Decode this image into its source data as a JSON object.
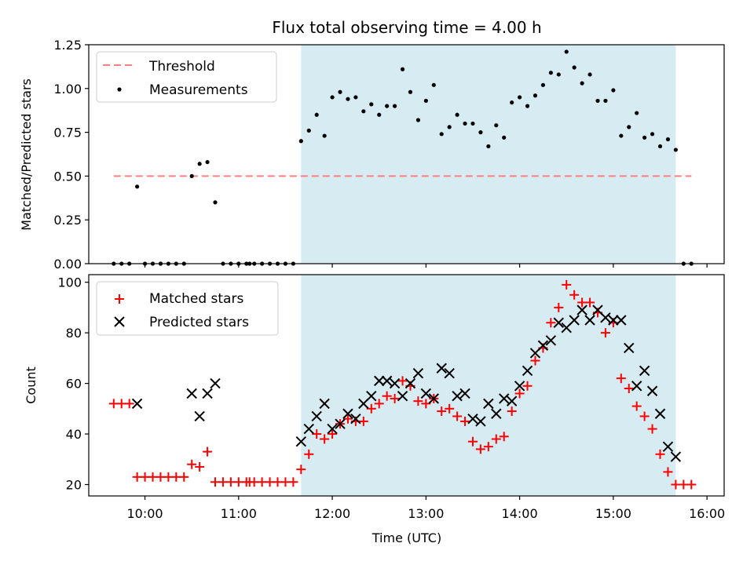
{
  "figure": {
    "title": "Flux total observing time = 4.00 h",
    "xlabel": "Time (UTC)"
  },
  "chart_data": [
    {
      "type": "scatter",
      "panel": "top",
      "ylabel": "Matched/Predicted stars",
      "xlim": [
        "09:24",
        "16:11"
      ],
      "ylim": [
        0,
        1.25
      ],
      "yticks": [
        "0.00",
        "0.25",
        "0.50",
        "0.75",
        "1.00",
        "1.25"
      ],
      "xticks": [
        "10:00",
        "11:00",
        "12:00",
        "13:00",
        "14:00",
        "15:00",
        "16:00"
      ],
      "shaded_span": [
        "11:40",
        "15:40"
      ],
      "shade_color": "#add8e6",
      "legend_position": "upper left",
      "threshold": {
        "name": "Threshold",
        "value": 0.5,
        "x_range": [
          "09:40",
          "15:50"
        ],
        "color": "#ff7f7f",
        "style": "dashed"
      },
      "series": [
        {
          "name": "Measurements",
          "color": "#000000",
          "marker": "dot",
          "x": [
            "09:40",
            "09:45",
            "09:50",
            "09:55",
            "10:00",
            "10:05",
            "10:10",
            "10:15",
            "10:20",
            "10:25",
            "10:30",
            "10:35",
            "10:40",
            "10:45",
            "10:50",
            "10:55",
            "11:00",
            "11:05",
            "11:07",
            "11:10",
            "11:15",
            "11:20",
            "11:25",
            "11:30",
            "11:35",
            "11:40",
            "11:45",
            "11:50",
            "11:55",
            "12:00",
            "12:05",
            "12:10",
            "12:15",
            "12:20",
            "12:25",
            "12:30",
            "12:35",
            "12:40",
            "12:45",
            "12:50",
            "12:55",
            "13:00",
            "13:05",
            "13:10",
            "13:15",
            "13:20",
            "13:25",
            "13:30",
            "13:35",
            "13:40",
            "13:45",
            "13:50",
            "13:55",
            "14:00",
            "14:05",
            "14:10",
            "14:15",
            "14:20",
            "14:25",
            "14:30",
            "14:35",
            "14:40",
            "14:45",
            "14:50",
            "14:55",
            "15:00",
            "15:05",
            "15:10",
            "15:15",
            "15:20",
            "15:25",
            "15:30",
            "15:35",
            "15:40",
            "15:45",
            "15:50"
          ],
          "y": [
            0,
            0,
            0,
            0.44,
            0,
            0,
            0,
            0,
            0,
            0,
            0.5,
            0.57,
            0.58,
            0.35,
            0,
            0,
            0,
            0,
            0,
            0,
            0,
            0,
            0,
            0,
            0,
            0.7,
            0.76,
            0.85,
            0.73,
            0.95,
            0.98,
            0.94,
            0.95,
            0.87,
            0.91,
            0.85,
            0.9,
            0.9,
            1.11,
            0.98,
            0.82,
            0.93,
            1.02,
            0.74,
            0.78,
            0.85,
            0.8,
            0.8,
            0.75,
            0.67,
            0.79,
            0.72,
            0.92,
            0.95,
            0.9,
            0.96,
            1.02,
            1.09,
            1.08,
            1.21,
            1.12,
            1.03,
            1.08,
            0.93,
            0.93,
            0.99,
            0.73,
            0.78,
            0.86,
            0.72,
            0.74,
            0.67,
            0.71,
            0.65,
            0,
            0
          ]
        }
      ]
    },
    {
      "type": "scatter",
      "panel": "bottom",
      "ylabel": "Count",
      "xlim": [
        "09:24",
        "16:11"
      ],
      "ylim": [
        15.5,
        103
      ],
      "yticks": [
        "20",
        "40",
        "60",
        "80",
        "100"
      ],
      "xticks": [
        "10:00",
        "11:00",
        "12:00",
        "13:00",
        "14:00",
        "15:00",
        "16:00"
      ],
      "shaded_span": [
        "11:40",
        "15:40"
      ],
      "shade_color": "#add8e6",
      "legend_position": "upper left",
      "series": [
        {
          "name": "Matched stars",
          "color": "#ff0000",
          "marker": "plus",
          "x": [
            "09:40",
            "09:45",
            "09:50",
            "09:55",
            "10:00",
            "10:05",
            "10:10",
            "10:15",
            "10:20",
            "10:25",
            "10:30",
            "10:35",
            "10:40",
            "10:45",
            "10:50",
            "10:55",
            "11:00",
            "11:05",
            "11:07",
            "11:10",
            "11:15",
            "11:20",
            "11:25",
            "11:30",
            "11:35",
            "11:40",
            "11:45",
            "11:50",
            "11:55",
            "12:00",
            "12:05",
            "12:10",
            "12:15",
            "12:20",
            "12:25",
            "12:30",
            "12:35",
            "12:40",
            "12:45",
            "12:50",
            "12:55",
            "13:00",
            "13:05",
            "13:10",
            "13:15",
            "13:20",
            "13:25",
            "13:30",
            "13:35",
            "13:40",
            "13:45",
            "13:50",
            "13:55",
            "14:00",
            "14:05",
            "14:10",
            "14:15",
            "14:20",
            "14:25",
            "14:30",
            "14:35",
            "14:40",
            "14:45",
            "14:50",
            "14:55",
            "15:00",
            "15:05",
            "15:10",
            "15:15",
            "15:20",
            "15:25",
            "15:30",
            "15:35",
            "15:40",
            "15:45",
            "15:50"
          ],
          "y": [
            52,
            52,
            52,
            23,
            23,
            23,
            23,
            23,
            23,
            23,
            28,
            27,
            33,
            21,
            21,
            21,
            21,
            21,
            21,
            21,
            21,
            21,
            21,
            21,
            21,
            26,
            32,
            40,
            38,
            40,
            44,
            46,
            45,
            45,
            50,
            52,
            55,
            54,
            61,
            59,
            53,
            52,
            54,
            49,
            50,
            47,
            45,
            37,
            34,
            35,
            38,
            39,
            49,
            56,
            59,
            69,
            74,
            84,
            90,
            99,
            95,
            92,
            92,
            88,
            80,
            84,
            62,
            58,
            51,
            47,
            42,
            32,
            25,
            20,
            20,
            20
          ]
        },
        {
          "name": "Predicted stars",
          "color": "#000000",
          "marker": "x",
          "x": [
            "09:55",
            "10:30",
            "10:35",
            "10:40",
            "10:45",
            "11:40",
            "11:45",
            "11:50",
            "11:55",
            "12:00",
            "12:05",
            "12:10",
            "12:15",
            "12:20",
            "12:25",
            "12:30",
            "12:35",
            "12:40",
            "12:45",
            "12:50",
            "12:55",
            "13:00",
            "13:05",
            "13:10",
            "13:15",
            "13:20",
            "13:25",
            "13:30",
            "13:35",
            "13:40",
            "13:45",
            "13:50",
            "13:55",
            "14:00",
            "14:05",
            "14:10",
            "14:15",
            "14:20",
            "14:25",
            "14:30",
            "14:35",
            "14:40",
            "14:45",
            "14:50",
            "14:55",
            "15:00",
            "15:05",
            "15:10",
            "15:15",
            "15:20",
            "15:25",
            "15:30",
            "15:35",
            "15:40"
          ],
          "y": [
            52,
            56,
            47,
            56,
            60,
            37,
            42,
            47,
            52,
            42,
            44,
            48,
            46,
            52,
            55,
            61,
            61,
            60,
            55,
            60,
            64,
            56,
            54,
            66,
            64,
            55,
            56,
            46,
            45,
            52,
            48,
            54,
            53,
            59,
            65,
            72,
            75,
            77,
            84,
            82,
            85,
            89,
            85,
            89,
            86,
            85,
            85,
            74,
            59,
            65,
            57,
            48,
            35,
            31
          ]
        }
      ]
    }
  ]
}
